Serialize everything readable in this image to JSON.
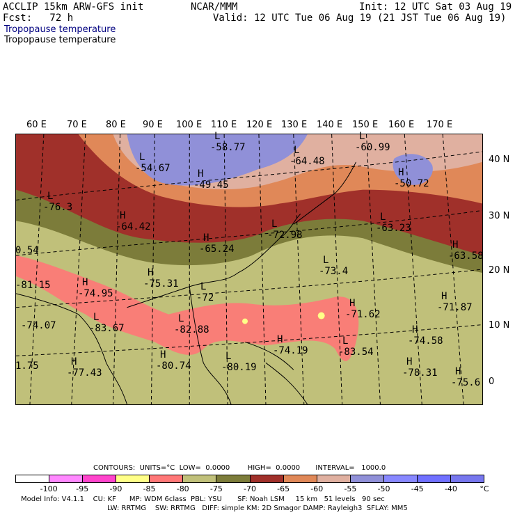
{
  "header": {
    "line1_left": "ACCLIP 15km ARW-GFS init",
    "line1_center": "NCAR/MMM",
    "line1_right": "Init: 12 UTC Sat 03 Aug 19",
    "line2_left": "Fcst:   72 h",
    "line2_right": "Valid: 12 UTC Tue 06 Aug 19 (21 JST Tue 06 Aug 19)",
    "field_title_blue": "Tropopause temperature",
    "field_title_black": "Tropopause temperature"
  },
  "map": {
    "lon_labels": [
      "60 E",
      "70 E",
      "80 E",
      "90 E",
      "100 E",
      "110 E",
      "120 E",
      "130 E",
      "140 E",
      "150 E",
      "160 E",
      "170 E"
    ],
    "lat_labels": [
      "40 N",
      "30 N",
      "20 N",
      "10 N",
      "0"
    ],
    "annotations": [
      {
        "letter": "L",
        "value": "-58.77"
      },
      {
        "letter": "L",
        "value": "-60.99"
      },
      {
        "letter": "L",
        "value": "-64.48"
      },
      {
        "letter": "L",
        "value": "-54.67"
      },
      {
        "letter": "H",
        "value": "-49.45"
      },
      {
        "letter": "H",
        "value": "-50.72"
      },
      {
        "letter": "L",
        "value": "-76.3"
      },
      {
        "letter": "H",
        "value": "-64.42"
      },
      {
        "letter": "L",
        "value": "-63.23"
      },
      {
        "letter": "L",
        "value": "-72.98"
      },
      {
        "letter": "H",
        "value": "-65.24"
      },
      {
        "letter": "H",
        "value": "-63.58"
      },
      {
        "letter": "L",
        "value": "-73.4"
      },
      {
        "letter": "H",
        "value": "-75.31"
      },
      {
        "letter": "H",
        "value": "-74.95"
      },
      {
        "letter": "L",
        "value": "-72"
      },
      {
        "letter": "H",
        "value": "-71.87"
      },
      {
        "letter": "H",
        "value": "-71.62"
      },
      {
        "letter": "L",
        "value": "-83.67"
      },
      {
        "letter": "L",
        "value": "-82.88"
      },
      {
        "letter": "H",
        "value": "-74.58"
      },
      {
        "letter": "H",
        "value": "-74.19"
      },
      {
        "letter": "L",
        "value": "-83.54"
      },
      {
        "letter": "H",
        "value": "-80.74"
      },
      {
        "letter": "L",
        "value": "-80.19"
      },
      {
        "letter": "H",
        "value": "-78.31"
      },
      {
        "letter": "H",
        "value": "-75.6"
      },
      {
        "letter": "H",
        "value": "-77.43"
      },
      {
        "letter": "",
        "value": "-81.15"
      },
      {
        "letter": "",
        "value": "-74.07"
      },
      {
        "letter": "",
        "value": "1.75"
      },
      {
        "letter": "",
        "value": "0.54"
      }
    ]
  },
  "contours_line": "CONTOURS:  UNITS=°C  LOW=  0.0000        HIGH=  0.0000       INTERVAL=   1000.0",
  "colorbar": {
    "colors": [
      "#ffffff",
      "#ff88ff",
      "#ff44cc",
      "#ffff88",
      "#ff7777",
      "#c0c07a",
      "#7c7c3a",
      "#a0302a",
      "#e08858",
      "#e0b0a0",
      "#9090d8",
      "#8888ff",
      "#7070ff",
      "#7777ee"
    ],
    "ticks": [
      "-100",
      "-95",
      "-90",
      "-85",
      "-80",
      "-75",
      "-70",
      "-65",
      "-60",
      "-55",
      "-50",
      "-45",
      "-40",
      "°C"
    ]
  },
  "footer": {
    "line1": "Model Info: V4.1.1    CU: KF      MP: WDM 6class  PBL: YSU       SF: Noah LSM     15 km   51 levels   90 sec",
    "line2": "LW: RRTMG    SW: RRTMG   DIFF: simple KM: 2D Smagor DAMP: Rayleigh3  SFLAY: MM5"
  }
}
